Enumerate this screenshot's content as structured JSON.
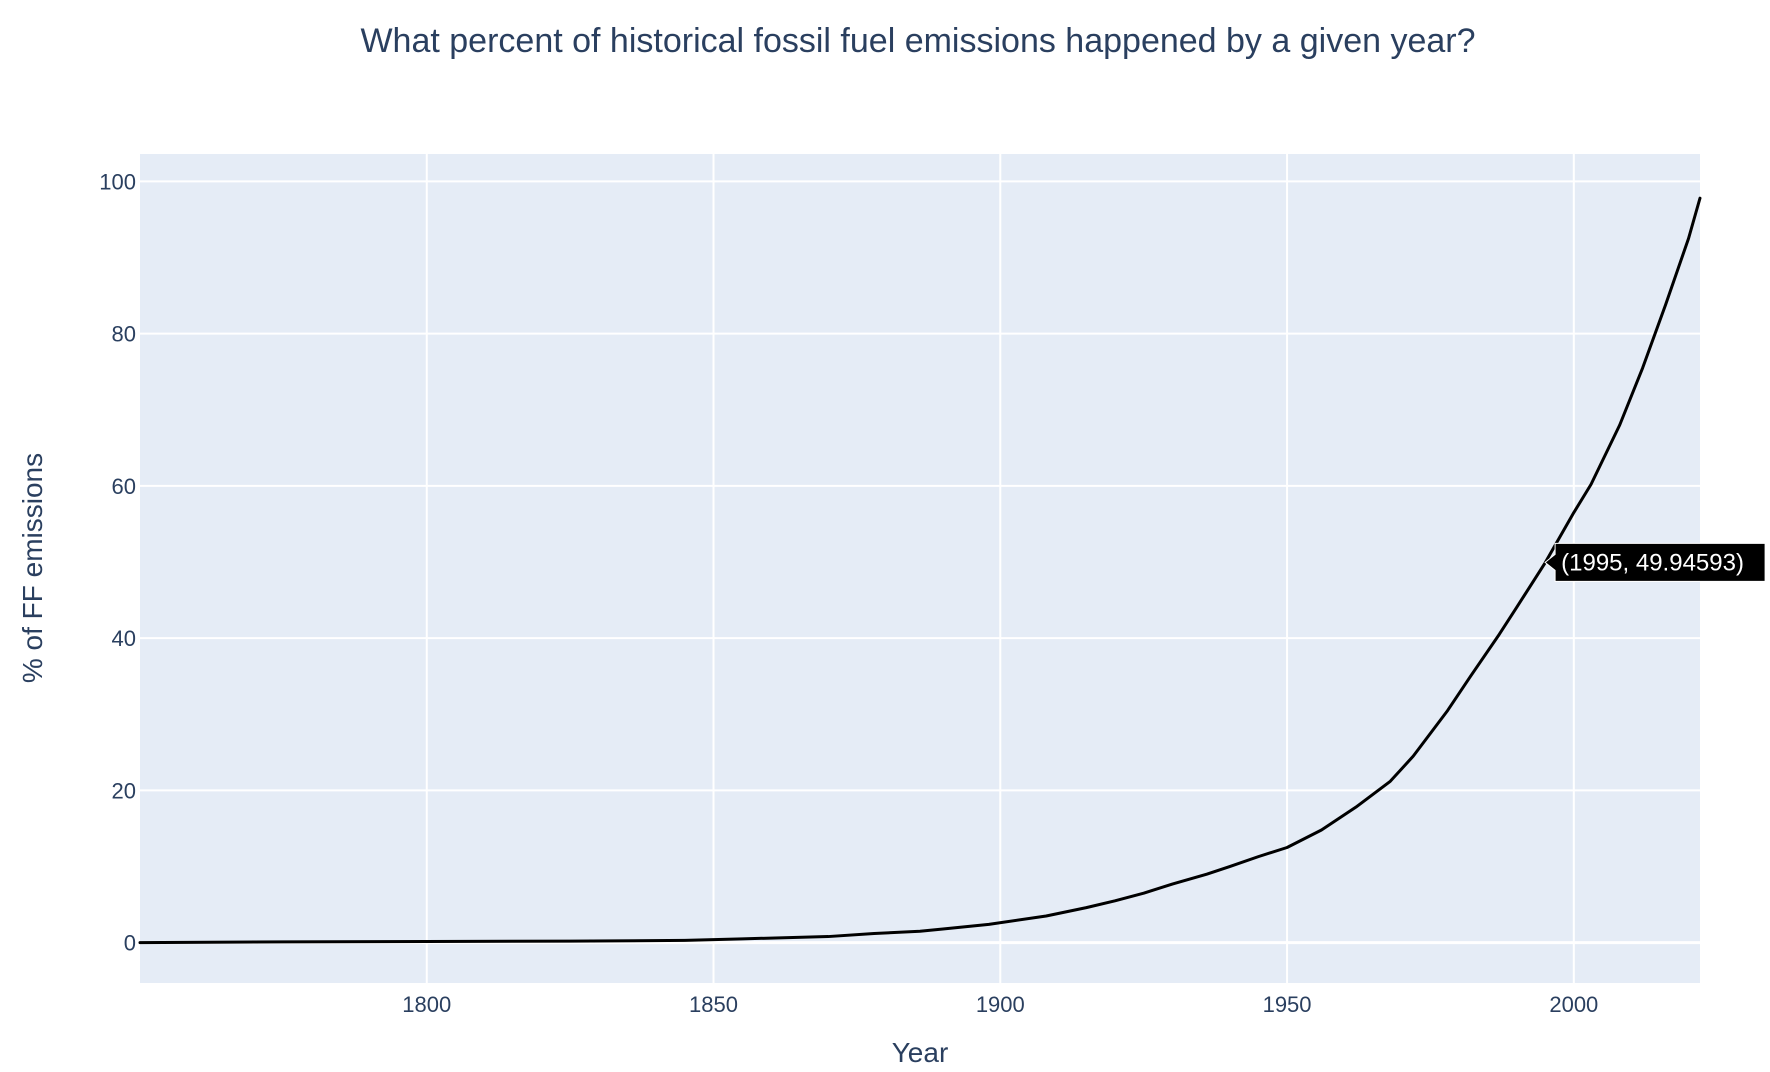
{
  "chart_data": {
    "type": "line",
    "title": "What percent of historical fossil fuel emissions happened by a given year?",
    "xlabel": "Year",
    "ylabel": "% of FF emissions",
    "xlim": [
      1750,
      2022
    ],
    "ylim": [
      -5.3,
      103.6
    ],
    "xticks": [
      1800,
      1850,
      1900,
      1950,
      2000
    ],
    "yticks": [
      0,
      20,
      40,
      60,
      80,
      100
    ],
    "grid": true,
    "colors": {
      "plot_background": "#e5ecf6",
      "grid": "#ffffff",
      "line": "#000000",
      "text": "#2a3f5f",
      "hover_background": "#000000",
      "hover_text": "#ffffff"
    },
    "series": [
      {
        "x": [
          1750,
          1775,
          1800,
          1825,
          1845,
          1855,
          1870,
          1878,
          1886,
          1890,
          1898,
          1908,
          1915,
          1920,
          1925,
          1930,
          1936,
          1940,
          1945,
          1950,
          1956,
          1962,
          1968,
          1972,
          1978,
          1982,
          1987,
          1990,
          1995,
          2000,
          2003,
          2008,
          2012,
          2016,
          2020,
          2022
        ],
        "y": [
          0.0,
          0.1,
          0.15,
          0.2,
          0.3,
          0.5,
          0.8,
          1.2,
          1.5,
          1.8,
          2.4,
          3.5,
          4.6,
          5.5,
          6.5,
          7.7,
          9.0,
          10.0,
          11.3,
          12.5,
          14.8,
          17.8,
          21.2,
          24.5,
          30.5,
          35.0,
          40.5,
          44.0,
          49.9,
          56.5,
          60.2,
          68.0,
          75.5,
          83.8,
          92.5,
          97.8
        ]
      }
    ],
    "hover": {
      "x": 1995,
      "y": 49.94593,
      "label": "(1995, 49.94593)"
    }
  }
}
